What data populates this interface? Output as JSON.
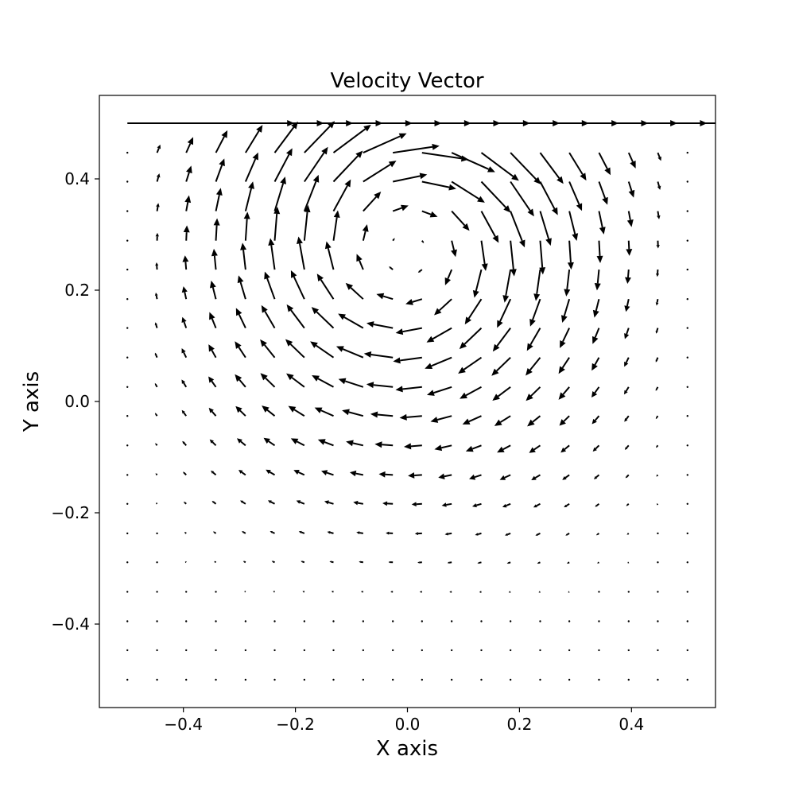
{
  "chart_data": {
    "type": "quiver",
    "title": "Velocity Vector",
    "xlabel": "X axis",
    "ylabel": "Y axis",
    "xlim": [
      -0.55,
      0.55
    ],
    "ylim": [
      -0.55,
      0.55
    ],
    "xticks": [
      -0.4,
      -0.2,
      0.0,
      0.2,
      0.4
    ],
    "yticks": [
      -0.4,
      -0.2,
      0.0,
      0.2,
      0.4
    ],
    "xtick_labels": [
      "−0.4",
      "−0.2",
      "0.0",
      "0.2",
      "0.4"
    ],
    "ytick_labels": [
      "−0.4",
      "−0.2",
      "0.0",
      "0.2",
      "0.4"
    ],
    "grid": false,
    "vector_color": "#000000",
    "x": [
      -0.5,
      -0.447,
      -0.395,
      -0.342,
      -0.289,
      -0.237,
      -0.184,
      -0.132,
      -0.079,
      -0.026,
      0.026,
      0.079,
      0.132,
      0.184,
      0.237,
      0.289,
      0.342,
      0.395,
      0.447,
      0.5
    ],
    "y": [
      -0.5,
      -0.447,
      -0.395,
      -0.342,
      -0.289,
      -0.237,
      -0.184,
      -0.132,
      -0.079,
      -0.026,
      0.026,
      0.079,
      0.132,
      0.184,
      0.237,
      0.289,
      0.342,
      0.395,
      0.447,
      0.5
    ],
    "flow": "lid-driven cavity; lid at y = 0.5 moves in +x direction; single clockwise vortex centered near (0.0, 0.27)"
  }
}
